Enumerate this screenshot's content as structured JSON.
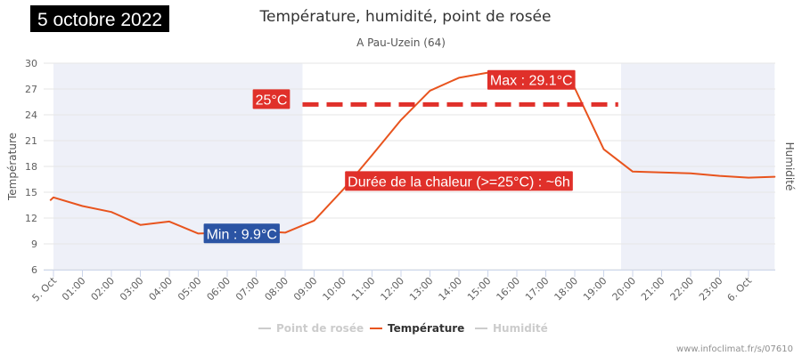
{
  "date_badge": "5 octobre 2022",
  "credit": "www.infoclimat.fr/s/07610",
  "colors": {
    "temperature": "#e8541e",
    "threshold": "#e0302a",
    "annotation_red": "#e0302a",
    "annotation_blue": "#2b54a4",
    "night_band": "#eef0f8",
    "legend_inactive": "#cccccc"
  },
  "chart_data": {
    "type": "line",
    "title": "Température, humidité, point de rosée",
    "subtitle": "A Pau-Uzein (64)",
    "ylabel": "Température",
    "ylabel_right": "Humidité",
    "ylim": [
      6,
      30
    ],
    "yticks": [
      6,
      9,
      12,
      15,
      18,
      21,
      24,
      27,
      30
    ],
    "x_categories": [
      "5. Oct",
      "01:00",
      "02:00",
      "03:00",
      "04:00",
      "05:00",
      "06:00",
      "07:00",
      "08:00",
      "09:00",
      "10:00",
      "11:00",
      "12:00",
      "13:00",
      "14:00",
      "15:00",
      "16:00",
      "17:00",
      "18:00",
      "19:00",
      "20:00",
      "21:00",
      "22:00",
      "23:00",
      "6. Oct"
    ],
    "grid": true,
    "night_bands": [
      [
        0,
        8.6
      ],
      [
        19.6,
        24.9
      ]
    ],
    "legend": {
      "position": "bottom",
      "items": [
        {
          "name": "Point de rosée",
          "active": false
        },
        {
          "name": "Température",
          "active": true
        },
        {
          "name": "Humidité",
          "active": false
        }
      ]
    },
    "series": [
      {
        "name": "Température",
        "x": [
          -0.1,
          0,
          1,
          2,
          3,
          4,
          5,
          6,
          7,
          8,
          9,
          10,
          11,
          12,
          13,
          14,
          15,
          16,
          17,
          18,
          19,
          20,
          21,
          22,
          23,
          24,
          24.9
        ],
        "values": [
          14.1,
          14.4,
          13.4,
          12.7,
          11.2,
          11.6,
          10.2,
          10.3,
          10.5,
          10.3,
          11.7,
          15.3,
          19.3,
          23.4,
          26.8,
          28.3,
          28.9,
          28.7,
          28.8,
          27.1,
          20.0,
          17.4,
          17.3,
          17.2,
          16.9,
          16.7,
          16.8
        ]
      }
    ],
    "threshold": {
      "value": 25.2,
      "x_start": 8.6,
      "x_end": 19.5,
      "label": "25°C"
    },
    "annotations": {
      "max": {
        "text": "Max : 29.1°C",
        "x": 16.5,
        "y": 29.1
      },
      "min": {
        "text": "Min : 9.9°C",
        "x": 6.5,
        "y": 9.9
      },
      "duration": {
        "text": "Durée de la chaleur (>=25°C) : ~6h",
        "x": 14.0,
        "y": 16.3
      }
    }
  }
}
